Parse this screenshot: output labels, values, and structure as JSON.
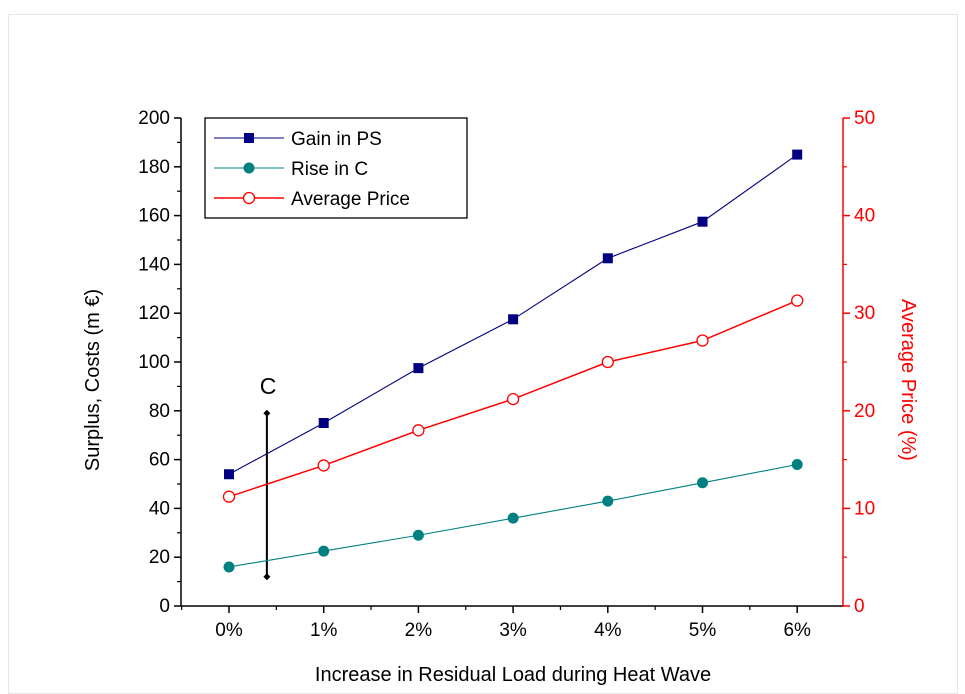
{
  "chart_data": {
    "type": "line",
    "xlabel": "Increase in Residual Load during Heat Wave",
    "ylabel_left": "Surplus, Costs (m €)",
    "ylabel_right": "Average Price (%)",
    "categories": [
      "0%",
      "1%",
      "2%",
      "3%",
      "4%",
      "5%",
      "6%"
    ],
    "ylim_left": [
      0,
      200
    ],
    "ylim_right": [
      0,
      50
    ],
    "yticks_left": [
      "0",
      "20",
      "40",
      "60",
      "80",
      "100",
      "120",
      "140",
      "160",
      "180",
      "200"
    ],
    "yticks_right": [
      "0",
      "10",
      "20",
      "30",
      "40",
      "50"
    ],
    "grid": false,
    "legend_position": "top-left",
    "series": [
      {
        "name": "Gain in PS",
        "axis": "left",
        "color": "#000080",
        "marker": "square",
        "values": [
          54,
          75,
          97.5,
          117.5,
          142.5,
          157.5,
          185
        ]
      },
      {
        "name": "Rise in C",
        "axis": "left",
        "color": "#008080",
        "marker": "circle",
        "values": [
          16,
          22.5,
          29,
          36,
          43,
          50.5,
          58
        ]
      },
      {
        "name": "Average Price",
        "axis": "right",
        "color": "#ff0000",
        "marker": "open-circle",
        "values": [
          11.2,
          14.4,
          18,
          21.2,
          25,
          27.2,
          31.3
        ]
      }
    ],
    "annotation": {
      "label": "C",
      "x": 0.4,
      "y_low": 12,
      "y_high": 79
    }
  },
  "colors": {
    "right_axis": "#ff0000",
    "axis": "#000000"
  }
}
